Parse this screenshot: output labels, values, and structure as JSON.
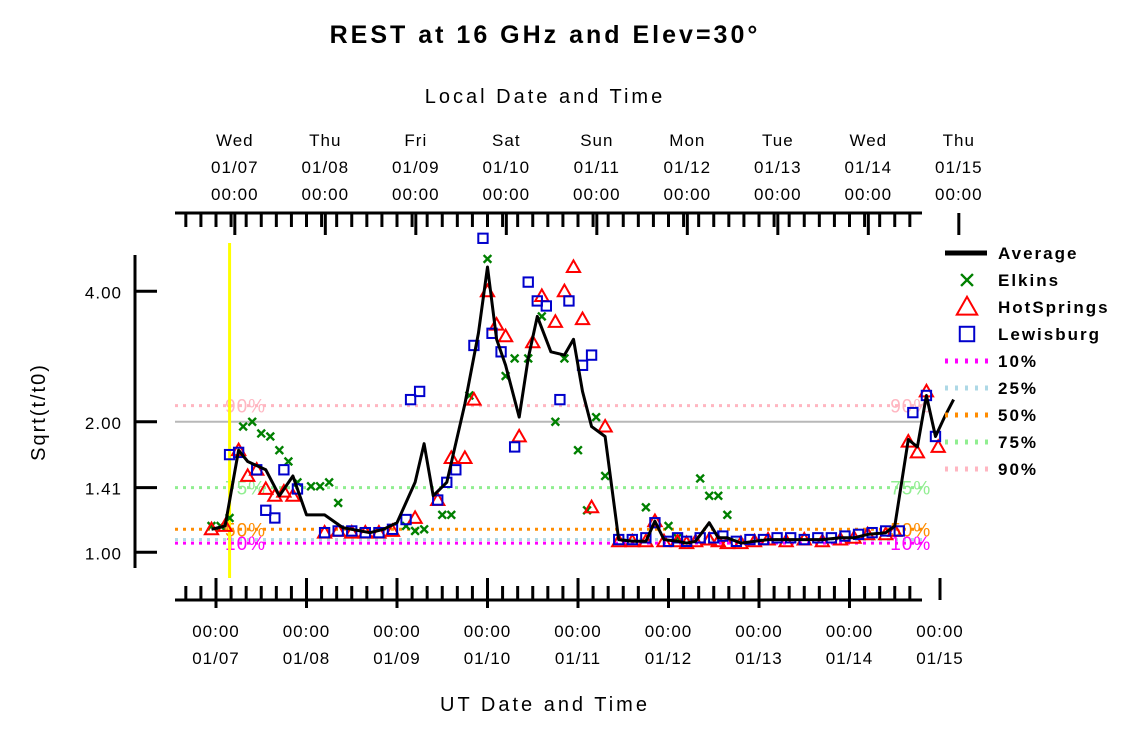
{
  "chart_data": {
    "type": "line",
    "title": "REST at 16 GHz and Elev=30°",
    "top_axis_label": "Local Date and Time",
    "xlabel": "UT Date and Time",
    "ylabel": "Sqrt(t/t0)",
    "x_unit": "days",
    "xlim": [
      -0.15,
      8.2
    ],
    "ylim": [
      0.92,
      4.85
    ],
    "y_scale": "log",
    "y_ticks": [
      {
        "value": 1.0,
        "label": "1.00"
      },
      {
        "value": 1.41,
        "label": "1.41"
      },
      {
        "value": 2.0,
        "label": "2.00"
      },
      {
        "value": 4.0,
        "label": "4.00"
      }
    ],
    "bottom_ticks": [
      {
        "x": 0,
        "time": "00:00",
        "date": "01/07"
      },
      {
        "x": 1,
        "time": "00:00",
        "date": "01/08"
      },
      {
        "x": 2,
        "time": "00:00",
        "date": "01/09"
      },
      {
        "x": 3,
        "time": "00:00",
        "date": "01/10"
      },
      {
        "x": 4,
        "time": "00:00",
        "date": "01/11"
      },
      {
        "x": 5,
        "time": "00:00",
        "date": "01/12"
      },
      {
        "x": 6,
        "time": "00:00",
        "date": "01/13"
      },
      {
        "x": 7,
        "time": "00:00",
        "date": "01/14"
      },
      {
        "x": 8,
        "time": "00:00",
        "date": "01/15"
      }
    ],
    "top_ticks": [
      {
        "x": 0.208,
        "day": "Wed",
        "date": "01/07",
        "time": "00:00"
      },
      {
        "x": 1.208,
        "day": "Thu",
        "date": "01/08",
        "time": "00:00"
      },
      {
        "x": 2.208,
        "day": "Fri",
        "date": "01/09",
        "time": "00:00"
      },
      {
        "x": 3.208,
        "day": "Sat",
        "date": "01/10",
        "time": "00:00"
      },
      {
        "x": 4.208,
        "day": "Sun",
        "date": "01/11",
        "time": "00:00"
      },
      {
        "x": 5.208,
        "day": "Mon",
        "date": "01/12",
        "time": "00:00"
      },
      {
        "x": 6.208,
        "day": "Tue",
        "date": "01/13",
        "time": "00:00"
      },
      {
        "x": 7.208,
        "day": "Wed",
        "date": "01/14",
        "time": "00:00"
      },
      {
        "x": 8.208,
        "day": "Thu",
        "date": "01/15",
        "time": "00:00"
      }
    ],
    "current_time_x": 0.15,
    "reference_line_y": 2.0,
    "percentiles": [
      {
        "name": "10%",
        "value": 1.05,
        "color": "#ff00ff"
      },
      {
        "name": "25%",
        "value": 1.07,
        "color": "#add8e6"
      },
      {
        "name": "50%",
        "value": 1.13,
        "color": "#ff8c00"
      },
      {
        "name": "75%",
        "value": 1.41,
        "color": "#90ee90"
      },
      {
        "name": "90%",
        "value": 2.18,
        "color": "#ffb6c1"
      }
    ],
    "percentile_labels": [
      {
        "text": "90%",
        "x": 0.1,
        "y": 2.18
      },
      {
        "text": "75%",
        "x": 0.1,
        "y": 1.41
      },
      {
        "text": "50%",
        "x": 0.1,
        "y": 1.13
      },
      {
        "text": "10%",
        "x": 0.1,
        "y": 1.05
      },
      {
        "text": "90%",
        "x": 7.45,
        "y": 2.18
      },
      {
        "text": "75%",
        "x": 7.45,
        "y": 1.41
      },
      {
        "text": "50%",
        "x": 7.45,
        "y": 1.13
      },
      {
        "text": "10%",
        "x": 7.45,
        "y": 1.05
      }
    ],
    "series": [
      {
        "name": "Average",
        "marker": "line",
        "color": "#000000",
        "points": [
          [
            -0.05,
            1.13
          ],
          [
            0.1,
            1.15
          ],
          [
            0.25,
            1.72
          ],
          [
            0.35,
            1.62
          ],
          [
            0.55,
            1.55
          ],
          [
            0.7,
            1.35
          ],
          [
            0.85,
            1.5
          ],
          [
            1.0,
            1.22
          ],
          [
            1.2,
            1.22
          ],
          [
            1.4,
            1.14
          ],
          [
            1.7,
            1.11
          ],
          [
            1.85,
            1.13
          ],
          [
            2.0,
            1.17
          ],
          [
            2.2,
            1.45
          ],
          [
            2.3,
            1.78
          ],
          [
            2.4,
            1.35
          ],
          [
            2.55,
            1.45
          ],
          [
            2.75,
            2.2
          ],
          [
            2.9,
            3.2
          ],
          [
            3.0,
            4.55
          ],
          [
            3.1,
            3.1
          ],
          [
            3.2,
            2.7
          ],
          [
            3.35,
            2.05
          ],
          [
            3.45,
            2.8
          ],
          [
            3.55,
            3.5
          ],
          [
            3.7,
            2.9
          ],
          [
            3.85,
            2.85
          ],
          [
            3.95,
            3.1
          ],
          [
            4.05,
            2.35
          ],
          [
            4.15,
            1.95
          ],
          [
            4.3,
            1.85
          ],
          [
            4.45,
            1.07
          ],
          [
            4.6,
            1.06
          ],
          [
            4.75,
            1.06
          ],
          [
            4.85,
            1.18
          ],
          [
            4.95,
            1.07
          ],
          [
            5.1,
            1.06
          ],
          [
            5.2,
            1.05
          ],
          [
            5.3,
            1.06
          ],
          [
            5.45,
            1.17
          ],
          [
            5.55,
            1.08
          ],
          [
            5.65,
            1.08
          ],
          [
            5.8,
            1.05
          ],
          [
            5.95,
            1.06
          ],
          [
            6.1,
            1.07
          ],
          [
            6.3,
            1.07
          ],
          [
            6.5,
            1.07
          ],
          [
            6.7,
            1.07
          ],
          [
            6.9,
            1.08
          ],
          [
            7.05,
            1.08
          ],
          [
            7.2,
            1.1
          ],
          [
            7.4,
            1.11
          ],
          [
            7.5,
            1.15
          ],
          [
            7.65,
            1.82
          ],
          [
            7.75,
            1.75
          ],
          [
            7.85,
            2.3
          ],
          [
            7.95,
            1.85
          ],
          [
            8.05,
            2.05
          ],
          [
            8.15,
            2.25
          ]
        ]
      },
      {
        "name": "Elkins",
        "marker": "x",
        "color": "#008000",
        "points": [
          [
            -0.05,
            1.15
          ],
          [
            0.05,
            1.15
          ],
          [
            0.15,
            1.2
          ],
          [
            0.3,
            1.95
          ],
          [
            0.4,
            2.0
          ],
          [
            0.5,
            1.88
          ],
          [
            0.6,
            1.85
          ],
          [
            0.7,
            1.72
          ],
          [
            0.8,
            1.62
          ],
          [
            0.9,
            1.45
          ],
          [
            1.05,
            1.42
          ],
          [
            1.15,
            1.42
          ],
          [
            1.25,
            1.45
          ],
          [
            1.35,
            1.3
          ],
          [
            2.1,
            1.15
          ],
          [
            2.2,
            1.12
          ],
          [
            2.3,
            1.13
          ],
          [
            2.5,
            1.22
          ],
          [
            2.6,
            1.22
          ],
          [
            2.8,
            2.3
          ],
          [
            3.0,
            4.75
          ],
          [
            3.2,
            2.55
          ],
          [
            3.3,
            2.8
          ],
          [
            3.45,
            2.8
          ],
          [
            3.6,
            3.5
          ],
          [
            3.75,
            2.0
          ],
          [
            3.85,
            2.8
          ],
          [
            4.0,
            1.72
          ],
          [
            4.1,
            1.25
          ],
          [
            4.2,
            2.05
          ],
          [
            4.3,
            1.5
          ],
          [
            4.75,
            1.27
          ],
          [
            5.0,
            1.15
          ],
          [
            5.1,
            1.08
          ],
          [
            5.35,
            1.48
          ],
          [
            5.45,
            1.35
          ],
          [
            5.55,
            1.35
          ],
          [
            5.65,
            1.22
          ]
        ]
      },
      {
        "name": "HotSprings",
        "marker": "triangle",
        "color": "#ff0000",
        "points": [
          [
            -0.05,
            1.13
          ],
          [
            0.1,
            1.15
          ],
          [
            0.25,
            1.72
          ],
          [
            0.35,
            1.5
          ],
          [
            0.45,
            1.55
          ],
          [
            0.55,
            1.4
          ],
          [
            0.65,
            1.35
          ],
          [
            0.75,
            1.38
          ],
          [
            0.85,
            1.35
          ],
          [
            1.2,
            1.11
          ],
          [
            1.35,
            1.12
          ],
          [
            1.5,
            1.11
          ],
          [
            1.65,
            1.11
          ],
          [
            1.8,
            1.11
          ],
          [
            1.95,
            1.12
          ],
          [
            2.2,
            1.2
          ],
          [
            2.45,
            1.32
          ],
          [
            2.6,
            1.65
          ],
          [
            2.75,
            1.65
          ],
          [
            2.85,
            2.25
          ],
          [
            3.0,
            4.0
          ],
          [
            3.1,
            3.35
          ],
          [
            3.2,
            3.15
          ],
          [
            3.35,
            1.85
          ],
          [
            3.5,
            3.05
          ],
          [
            3.6,
            3.9
          ],
          [
            3.75,
            3.4
          ],
          [
            3.85,
            4.0
          ],
          [
            3.95,
            4.55
          ],
          [
            4.05,
            3.45
          ],
          [
            4.15,
            1.27
          ],
          [
            4.3,
            1.95
          ],
          [
            4.45,
            1.06
          ],
          [
            4.6,
            1.06
          ],
          [
            4.75,
            1.06
          ],
          [
            4.85,
            1.18
          ],
          [
            4.95,
            1.06
          ],
          [
            5.1,
            1.06
          ],
          [
            5.2,
            1.05
          ],
          [
            5.3,
            1.06
          ],
          [
            5.45,
            1.07
          ],
          [
            5.55,
            1.06
          ],
          [
            5.65,
            1.05
          ],
          [
            5.8,
            1.05
          ],
          [
            5.95,
            1.06
          ],
          [
            6.1,
            1.07
          ],
          [
            6.3,
            1.06
          ],
          [
            6.5,
            1.07
          ],
          [
            6.7,
            1.06
          ],
          [
            6.9,
            1.07
          ],
          [
            7.05,
            1.08
          ],
          [
            7.2,
            1.1
          ],
          [
            7.4,
            1.1
          ],
          [
            7.5,
            1.12
          ],
          [
            7.65,
            1.8
          ],
          [
            7.75,
            1.7
          ],
          [
            7.85,
            2.35
          ],
          [
            7.98,
            1.75
          ]
        ]
      },
      {
        "name": "Lewisburg",
        "marker": "square",
        "color": "#0000cc",
        "points": [
          [
            0.15,
            1.68
          ],
          [
            0.25,
            1.7
          ],
          [
            0.45,
            1.55
          ],
          [
            0.55,
            1.25
          ],
          [
            0.65,
            1.2
          ],
          [
            0.75,
            1.55
          ],
          [
            0.9,
            1.4
          ],
          [
            1.2,
            1.11
          ],
          [
            1.35,
            1.12
          ],
          [
            1.5,
            1.12
          ],
          [
            1.65,
            1.11
          ],
          [
            1.8,
            1.11
          ],
          [
            1.95,
            1.13
          ],
          [
            2.1,
            1.19
          ],
          [
            2.15,
            2.25
          ],
          [
            2.25,
            2.35
          ],
          [
            2.45,
            1.32
          ],
          [
            2.55,
            1.45
          ],
          [
            2.65,
            1.55
          ],
          [
            2.85,
            3.0
          ],
          [
            2.95,
            5.3
          ],
          [
            3.05,
            3.2
          ],
          [
            3.15,
            2.9
          ],
          [
            3.3,
            1.75
          ],
          [
            3.45,
            4.2
          ],
          [
            3.55,
            3.8
          ],
          [
            3.65,
            3.7
          ],
          [
            3.8,
            2.25
          ],
          [
            3.9,
            3.8
          ],
          [
            4.05,
            2.7
          ],
          [
            4.15,
            2.85
          ],
          [
            4.45,
            1.07
          ],
          [
            4.6,
            1.07
          ],
          [
            4.75,
            1.08
          ],
          [
            4.85,
            1.17
          ],
          [
            5.0,
            1.06
          ],
          [
            5.1,
            1.08
          ],
          [
            5.2,
            1.06
          ],
          [
            5.35,
            1.08
          ],
          [
            5.5,
            1.08
          ],
          [
            5.6,
            1.09
          ],
          [
            5.75,
            1.06
          ],
          [
            5.9,
            1.07
          ],
          [
            6.05,
            1.07
          ],
          [
            6.2,
            1.08
          ],
          [
            6.35,
            1.08
          ],
          [
            6.5,
            1.07
          ],
          [
            6.65,
            1.08
          ],
          [
            6.8,
            1.08
          ],
          [
            6.95,
            1.09
          ],
          [
            7.1,
            1.1
          ],
          [
            7.25,
            1.11
          ],
          [
            7.4,
            1.12
          ],
          [
            7.55,
            1.12
          ],
          [
            7.7,
            2.1
          ],
          [
            7.85,
            2.3
          ],
          [
            7.95,
            1.85
          ]
        ]
      }
    ],
    "legend_position": "right"
  }
}
